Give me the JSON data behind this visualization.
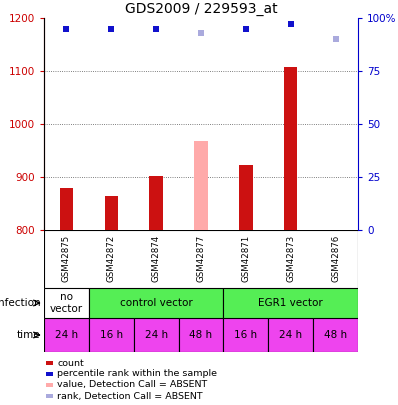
{
  "title": "GDS2009 / 229593_at",
  "samples": [
    "GSM42875",
    "GSM42872",
    "GSM42874",
    "GSM42877",
    "GSM42871",
    "GSM42873",
    "GSM42876"
  ],
  "count_values": [
    880,
    865,
    902,
    null,
    922,
    1108,
    null
  ],
  "count_absent_values": [
    null,
    null,
    null,
    968,
    null,
    null,
    null
  ],
  "rank_values": [
    95,
    95,
    95,
    null,
    95,
    97,
    null
  ],
  "rank_absent_values": [
    null,
    null,
    null,
    93,
    null,
    null,
    90
  ],
  "ylim_left": [
    800,
    1200
  ],
  "ylim_right": [
    0,
    100
  ],
  "yticks_left": [
    800,
    900,
    1000,
    1100,
    1200
  ],
  "yticks_right": [
    0,
    25,
    50,
    75,
    100
  ],
  "ytick_right_labels": [
    "0",
    "25",
    "50",
    "75",
    "100%"
  ],
  "time_labels": [
    "24 h",
    "16 h",
    "24 h",
    "48 h",
    "16 h",
    "24 h",
    "48 h"
  ],
  "time_color": "#ee44ee",
  "bar_color_present": "#cc1111",
  "bar_color_absent": "#ffaaaa",
  "dot_color_present": "#1111cc",
  "dot_color_absent": "#aaaadd",
  "grid_color": "#555555",
  "bg_color": "#ffffff",
  "sample_bg": "#cccccc",
  "infection_color_none": "#ffffff",
  "infection_color_ctrl": "#55ee55",
  "infection_color_egr": "#55ee55",
  "legend_items": [
    [
      "#cc1111",
      "count"
    ],
    [
      "#1111cc",
      "percentile rank within the sample"
    ],
    [
      "#ffaaaa",
      "value, Detection Call = ABSENT"
    ],
    [
      "#aaaadd",
      "rank, Detection Call = ABSENT"
    ]
  ]
}
